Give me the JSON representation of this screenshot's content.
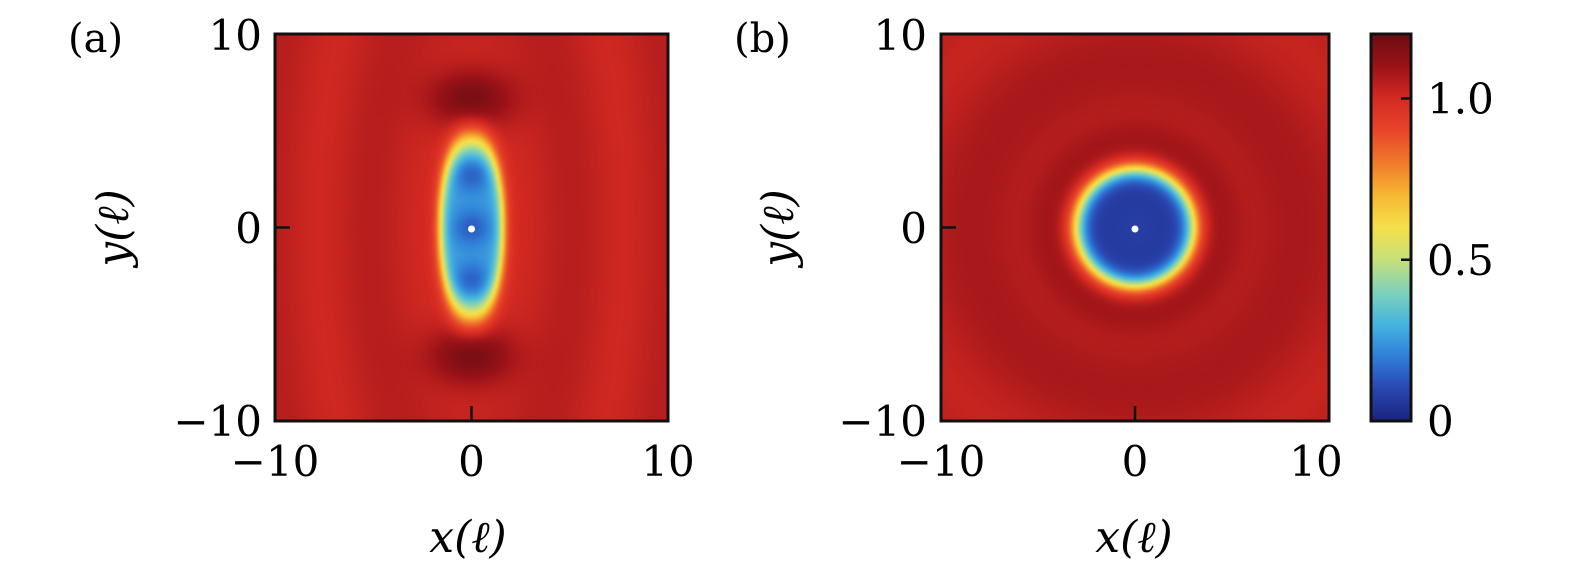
{
  "chart_data": [
    {
      "type": "heatmap",
      "panel_label": "(a)",
      "xlabel": "x(ℓ)",
      "ylabel": "y(ℓ)",
      "xlim": [
        -10,
        10
      ],
      "ylim": [
        -10,
        10
      ],
      "xticks": [
        -10,
        0,
        10
      ],
      "yticks": [
        -10,
        0,
        10
      ],
      "xtick_labels": [
        "−10",
        "0",
        "10"
      ],
      "ytick_labels": [
        "−10",
        "0",
        "10"
      ],
      "field": {
        "shape": "elongated-vertical",
        "depletion_radius_x": 1.6,
        "depletion_radius_y": 4.6,
        "minima_y": [
          -2.8,
          0,
          2.8
        ],
        "peak_y": [
          6.6,
          -6.6
        ],
        "background_value": 1.03,
        "min_value": 0.05,
        "peak_value": 1.2
      },
      "center_marker": {
        "x": 0,
        "y": 0
      }
    },
    {
      "type": "heatmap",
      "panel_label": "(b)",
      "xlabel": "x(ℓ)",
      "ylabel": "y(ℓ)",
      "xlim": [
        -10,
        10
      ],
      "ylim": [
        -10,
        10
      ],
      "xticks": [
        -10,
        0,
        10
      ],
      "yticks": [
        -10,
        0,
        10
      ],
      "xtick_labels": [
        "−10",
        "0",
        "10"
      ],
      "ytick_labels": [
        "−10",
        "0",
        "10"
      ],
      "field": {
        "shape": "circular",
        "depletion_radius": 3.0,
        "ring_radius": 4.3,
        "background_value": 1.05,
        "min_value": 0.05,
        "ring_value": 1.12
      },
      "center_marker": {
        "x": 0,
        "y": 0
      }
    }
  ],
  "colorbar": {
    "range": [
      0,
      1.2
    ],
    "ticks": [
      0,
      0.5,
      1.0
    ],
    "tick_labels": [
      "0",
      "0.5",
      "1.0"
    ],
    "colormap": [
      "#1a237e",
      "#2a46b0",
      "#2f7fd8",
      "#46b4e0",
      "#7fd1b9",
      "#c7e07a",
      "#f5e04a",
      "#f7b733",
      "#f07a2c",
      "#e8452a",
      "#d42a22",
      "#9a1218",
      "#6b0d12"
    ]
  }
}
